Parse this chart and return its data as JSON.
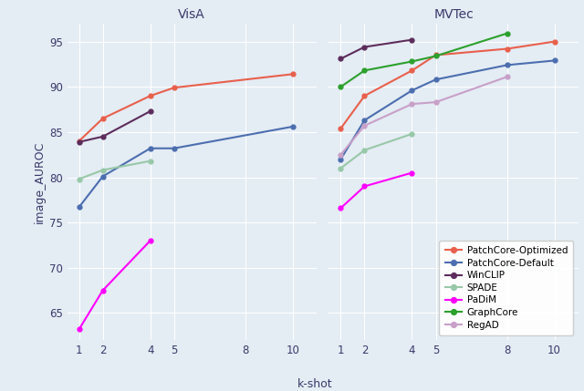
{
  "visa": {
    "x_ticks": [
      1,
      2,
      4,
      5,
      8,
      10
    ],
    "PatchCore-Optimized": {
      "x": [
        1,
        2,
        4,
        5,
        10
      ],
      "y": [
        84.0,
        86.5,
        89.0,
        89.9,
        91.4
      ]
    },
    "PatchCore-Default": {
      "x": [
        1,
        2,
        4,
        5,
        10
      ],
      "y": [
        76.7,
        80.1,
        83.2,
        83.2,
        85.6
      ]
    },
    "WinCLIP": {
      "x": [
        1,
        2,
        4
      ],
      "y": [
        83.9,
        84.5,
        87.3
      ]
    },
    "SPADE": {
      "x": [
        1,
        2,
        4
      ],
      "y": [
        79.8,
        80.8,
        81.8
      ]
    },
    "PaDiM": {
      "x": [
        1,
        2,
        4
      ],
      "y": [
        63.2,
        67.5,
        73.0
      ]
    },
    "GraphCore": {
      "x": [],
      "y": []
    },
    "RegAD": {
      "x": [],
      "y": []
    }
  },
  "mvtec": {
    "x_ticks": [
      1,
      2,
      4,
      5,
      8,
      10
    ],
    "PatchCore-Optimized": {
      "x": [
        1,
        2,
        4,
        5,
        8,
        10
      ],
      "y": [
        85.4,
        89.0,
        91.8,
        93.5,
        94.2,
        95.0
      ]
    },
    "PatchCore-Default": {
      "x": [
        1,
        2,
        4,
        5,
        8,
        10
      ],
      "y": [
        82.0,
        86.3,
        89.6,
        90.8,
        92.4,
        92.9
      ]
    },
    "WinCLIP": {
      "x": [
        1,
        2,
        4
      ],
      "y": [
        93.1,
        94.4,
        95.2
      ]
    },
    "SPADE": {
      "x": [
        1,
        2,
        4
      ],
      "y": [
        81.0,
        83.0,
        84.8
      ]
    },
    "PaDiM": {
      "x": [
        1,
        2,
        4
      ],
      "y": [
        76.6,
        79.0,
        80.5
      ]
    },
    "GraphCore": {
      "x": [
        1,
        2,
        4,
        5,
        8
      ],
      "y": [
        90.0,
        91.8,
        92.8,
        93.4,
        95.9
      ]
    },
    "RegAD": {
      "x": [
        1,
        2,
        4,
        5,
        8
      ],
      "y": [
        82.5,
        85.7,
        88.1,
        88.3,
        91.1
      ]
    }
  },
  "series_styles": {
    "PatchCore-Optimized": {
      "color": "#E8604C",
      "marker": "o"
    },
    "PatchCore-Default": {
      "color": "#4C6EAF",
      "marker": "o"
    },
    "WinCLIP": {
      "color": "#5C2D5C",
      "marker": "o"
    },
    "SPADE": {
      "color": "#98C8A8",
      "marker": "o"
    },
    "PaDiM": {
      "color": "#FF00FF",
      "marker": "o"
    },
    "GraphCore": {
      "color": "#2CA02C",
      "marker": "o"
    },
    "RegAD": {
      "color": "#C8A0C8",
      "marker": "o"
    }
  },
  "ylim": [
    62,
    97
  ],
  "yticks": [
    65,
    70,
    75,
    80,
    85,
    90,
    95
  ],
  "ylabel": "image_AUROC",
  "xlabel": "k-shot",
  "title_visa": "VisA",
  "title_mvtec": "MVTec",
  "bg_color": "#E4ECF4",
  "legend_order": [
    "PatchCore-Optimized",
    "PatchCore-Default",
    "WinCLIP",
    "SPADE",
    "PaDiM",
    "GraphCore",
    "RegAD"
  ]
}
